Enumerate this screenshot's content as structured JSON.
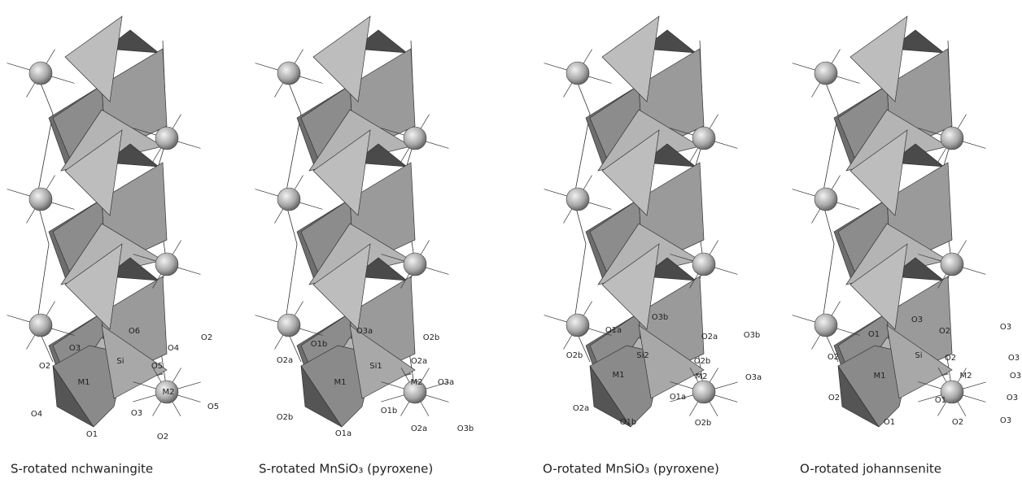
{
  "panels": [
    {
      "caption": "S-rotated nchwaningite",
      "labels": [
        "O6",
        "O3",
        "O4",
        "O2",
        "Si",
        "O5",
        "O2",
        "M1",
        "M2",
        "O4",
        "O3",
        "O5",
        "O1",
        "O2"
      ]
    },
    {
      "caption": "S-rotated MnSiO₃ (pyroxene)",
      "labels": [
        "O3a",
        "O1b",
        "O2b",
        "O2a",
        "Si1",
        "O2a",
        "M1",
        "M2",
        "O3a",
        "O2b",
        "O1b",
        "O1a",
        "O2a",
        "O3b"
      ]
    },
    {
      "caption": "O-rotated MnSiO₃ (pyroxene)",
      "labels": [
        "O3b",
        "O1a",
        "O2a",
        "O3b",
        "O2b",
        "Si2",
        "O2b",
        "M1",
        "M2",
        "O3a",
        "O1a",
        "O2a",
        "O1b",
        "O2b"
      ]
    },
    {
      "caption": "O-rotated johannsenite",
      "labels": [
        "O3",
        "O1",
        "O2",
        "O3",
        "O2",
        "Si",
        "O2",
        "O3",
        "M1",
        "M2",
        "O3",
        "O2",
        "O1",
        "O3",
        "O1",
        "O2",
        "O3"
      ]
    }
  ]
}
